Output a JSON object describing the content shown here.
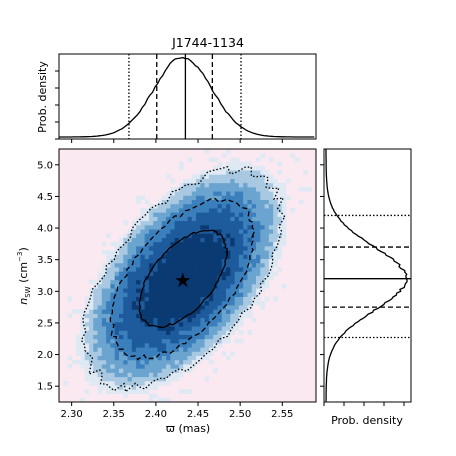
{
  "chart_data": {
    "type": "heatmap",
    "title": "J1744-1134",
    "joint": {
      "xlabel": "ϖ (mas)",
      "ylabel": "n",
      "ylabel_sub": "SW",
      "ylabel_unit_open": " (cm",
      "ylabel_unit_exp": "−3",
      "ylabel_unit_close": ")",
      "xlim": [
        2.285,
        2.59
      ],
      "ylim": [
        1.25,
        5.25
      ],
      "xticks": [
        "2.30",
        "2.35",
        "2.40",
        "2.45",
        "2.50",
        "2.55"
      ],
      "yticks": [
        "1.5",
        "2.0",
        "2.5",
        "3.0",
        "3.5",
        "4.0",
        "4.5",
        "5.0"
      ],
      "mode": {
        "x": 2.432,
        "y": 3.18
      },
      "distribution": {
        "mean_x": 2.432,
        "mean_y": 3.2,
        "sd_x": 0.034,
        "sd_y": 0.5,
        "correlation": 0.55
      },
      "contour_levels": [
        "1-sigma (solid)",
        "2-sigma (dashed)",
        "3-sigma (dotted)"
      ],
      "colormap": [
        "#fbe9f1",
        "#dfe9f3",
        "#a9c9e2",
        "#6ba4cf",
        "#3b7fbc",
        "#1d5b9c",
        "#0b3a73"
      ]
    },
    "marginal_x": {
      "ylabel": "Prob. density",
      "median": 2.435,
      "lines_1sigma": [
        2.401,
        2.467
      ],
      "lines_2sigma": [
        2.368,
        2.501
      ]
    },
    "marginal_y": {
      "xlabel": "Prob. density",
      "median": 3.2,
      "lines_1sigma": [
        2.75,
        3.7
      ],
      "lines_2sigma": [
        2.27,
        4.2
      ]
    }
  }
}
